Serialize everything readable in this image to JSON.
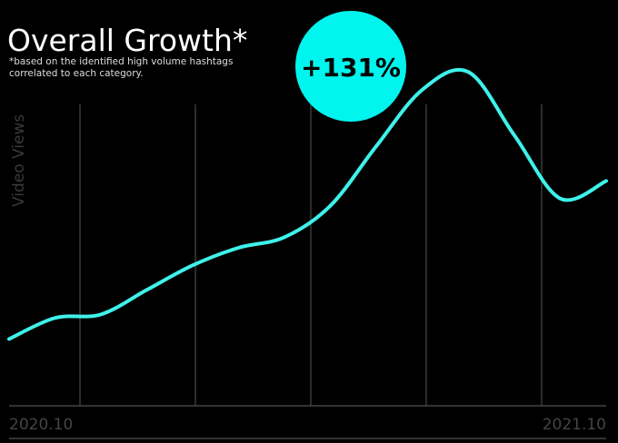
{
  "chart_data": {
    "type": "line",
    "title": "Overall Growth*",
    "subtitle": "*based on the identified high volume hashtags correlated to each category.",
    "annotation": "+131%",
    "y_label": "Video Views",
    "categories": [
      "2020.10",
      null,
      null,
      null,
      null,
      null,
      null,
      null,
      null,
      null,
      null,
      null,
      null,
      "2021.10"
    ],
    "values": [
      19,
      25,
      26,
      33,
      40,
      45,
      48,
      57,
      74,
      90,
      95,
      77,
      59,
      64
    ],
    "color": "#3ef2ea",
    "ylim": [
      0,
      100
    ]
  }
}
